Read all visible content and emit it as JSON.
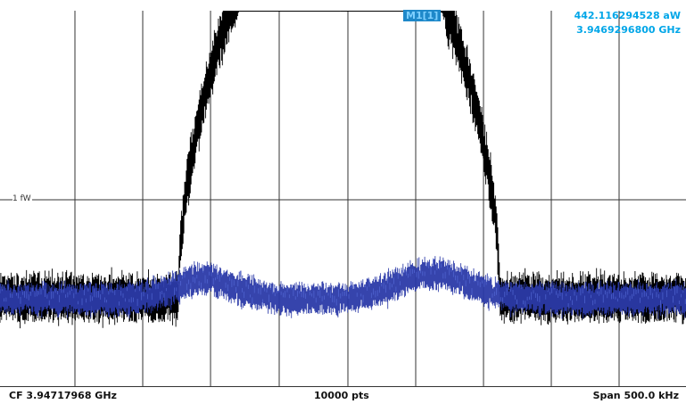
{
  "colors": {
    "background": "#ffffff",
    "grid": "#333333",
    "trace1": "#000000",
    "trace2": "#2b3aa8",
    "trace2_highlight": "#5a72e0",
    "marker_readout": "#00a6e8",
    "marker_label_bg": "#1e88c9",
    "marker_label_text": "#7fd0ff"
  },
  "marker": {
    "label": "M1[1]",
    "value": "442.116294528 aW",
    "frequency": "3.9469296800 GHz"
  },
  "reference_label": "1 fW",
  "footer": {
    "center_frequency": "CF 3.94717968 GHz",
    "points": "10000 pts",
    "span": "Span 500.0 kHz"
  }
}
